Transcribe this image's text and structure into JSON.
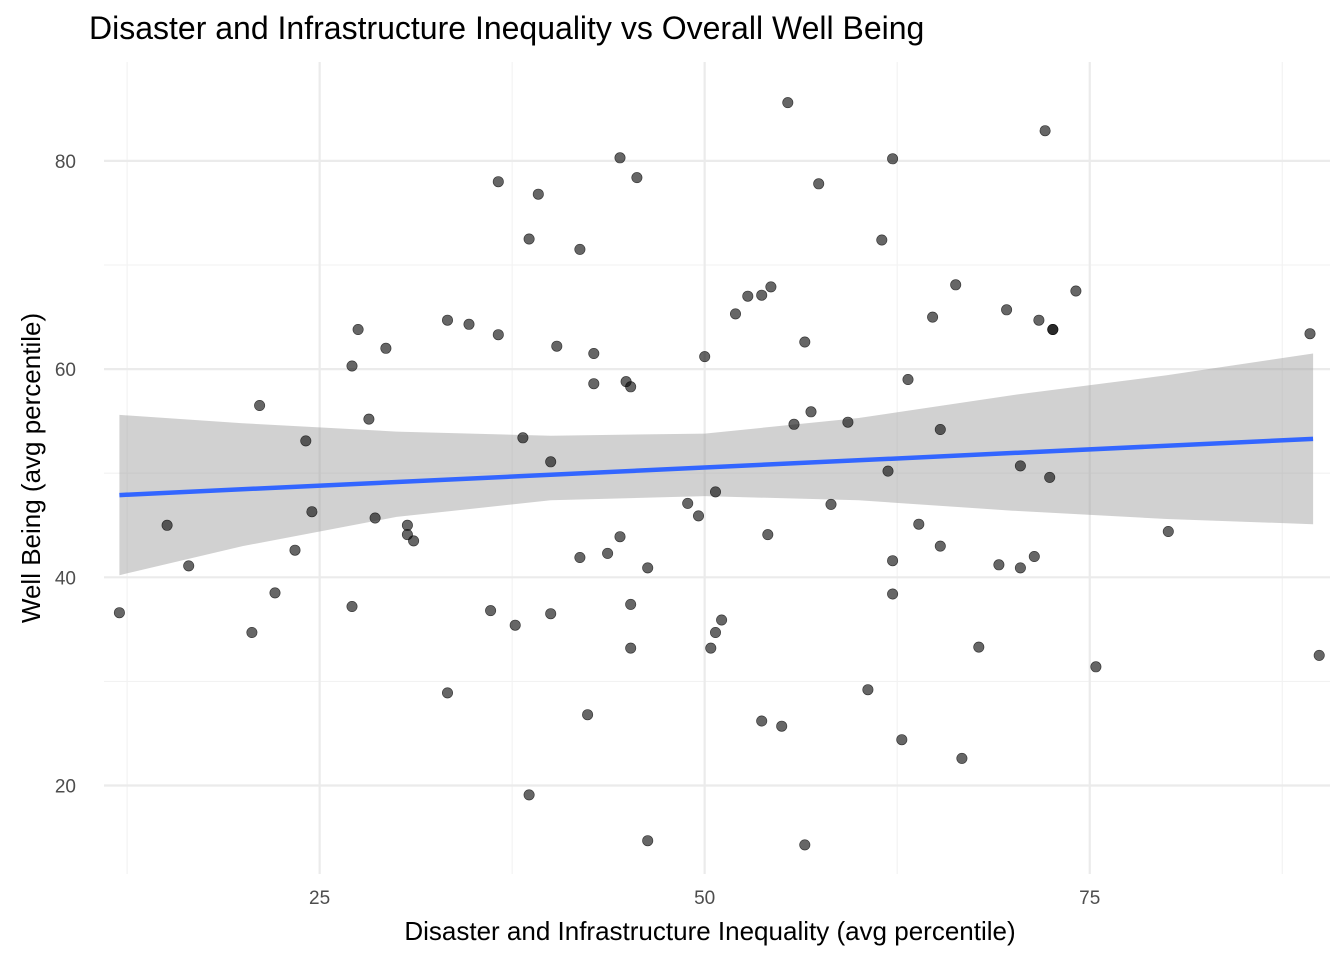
{
  "chart_data": {
    "type": "scatter",
    "title": "Disaster and Infrastructure Inequality vs Overall Well Being",
    "xlabel": "Disaster and Infrastructure Inequality (avg percentile)",
    "ylabel": "Well Being (avg percentile)",
    "xlim": [
      11,
      90.6
    ],
    "ylim": [
      11.5,
      89.5
    ],
    "x_ticks": [
      25,
      50,
      75
    ],
    "y_ticks": [
      20,
      40,
      60,
      80
    ],
    "x_tick_labels": [
      "25",
      "50",
      "75"
    ],
    "y_tick_labels": [
      "20",
      "40",
      "60",
      "80"
    ],
    "grid": true,
    "point_color": "#000000",
    "trend": {
      "method": "linear",
      "color": "#3366ff",
      "ci_color": "#999999",
      "line": [
        [
          12.0,
          47.9
        ],
        [
          89.5,
          53.3
        ]
      ],
      "ci_band": [
        [
          12.0,
          40.2,
          55.6
        ],
        [
          20.0,
          43.0,
          54.8
        ],
        [
          30.0,
          45.8,
          54.0
        ],
        [
          40.0,
          47.4,
          53.6
        ],
        [
          50.0,
          47.8,
          53.8
        ],
        [
          60.0,
          47.4,
          55.3
        ],
        [
          70.0,
          46.4,
          57.5
        ],
        [
          80.0,
          45.6,
          59.4
        ],
        [
          89.5,
          45.1,
          61.5
        ]
      ]
    },
    "points": [
      [
        12.0,
        36.6
      ],
      [
        15.1,
        45.0
      ],
      [
        16.5,
        41.1
      ],
      [
        20.6,
        34.7
      ],
      [
        21.1,
        56.5
      ],
      [
        22.1,
        38.5
      ],
      [
        23.4,
        42.6
      ],
      [
        24.1,
        53.1
      ],
      [
        24.5,
        46.3
      ],
      [
        27.1,
        60.3
      ],
      [
        27.1,
        37.2
      ],
      [
        27.5,
        63.8
      ],
      [
        28.2,
        55.2
      ],
      [
        28.6,
        45.7
      ],
      [
        29.3,
        62.0
      ],
      [
        30.7,
        45.0
      ],
      [
        30.7,
        44.1
      ],
      [
        31.1,
        43.5
      ],
      [
        33.3,
        28.9
      ],
      [
        33.3,
        64.7
      ],
      [
        34.7,
        64.3
      ],
      [
        36.1,
        36.8
      ],
      [
        36.6,
        63.3
      ],
      [
        36.6,
        78.0
      ],
      [
        37.7,
        35.4
      ],
      [
        38.2,
        53.4
      ],
      [
        38.6,
        72.5
      ],
      [
        38.6,
        19.1
      ],
      [
        39.2,
        76.8
      ],
      [
        40.0,
        51.1
      ],
      [
        40.0,
        36.5
      ],
      [
        40.4,
        62.2
      ],
      [
        41.9,
        71.5
      ],
      [
        41.9,
        41.9
      ],
      [
        42.4,
        26.8
      ],
      [
        42.8,
        58.6
      ],
      [
        42.8,
        61.5
      ],
      [
        43.7,
        42.3
      ],
      [
        44.5,
        43.9
      ],
      [
        44.5,
        80.3
      ],
      [
        44.9,
        58.8
      ],
      [
        45.2,
        37.4
      ],
      [
        45.2,
        58.3
      ],
      [
        45.2,
        33.2
      ],
      [
        45.6,
        78.4
      ],
      [
        46.3,
        40.9
      ],
      [
        46.3,
        14.7
      ],
      [
        48.9,
        47.1
      ],
      [
        49.6,
        45.9
      ],
      [
        50.0,
        61.2
      ],
      [
        50.4,
        33.2
      ],
      [
        50.7,
        48.2
      ],
      [
        50.7,
        34.7
      ],
      [
        51.1,
        35.9
      ],
      [
        52.0,
        65.3
      ],
      [
        52.8,
        67.0
      ],
      [
        53.7,
        67.1
      ],
      [
        53.7,
        26.2
      ],
      [
        54.1,
        44.1
      ],
      [
        54.3,
        67.9
      ],
      [
        55.0,
        25.7
      ],
      [
        55.4,
        85.6
      ],
      [
        55.8,
        54.7
      ],
      [
        56.5,
        62.6
      ],
      [
        56.5,
        14.3
      ],
      [
        56.9,
        55.9
      ],
      [
        57.4,
        77.8
      ],
      [
        58.2,
        47.0
      ],
      [
        59.3,
        54.9
      ],
      [
        60.6,
        29.2
      ],
      [
        61.5,
        72.4
      ],
      [
        61.9,
        50.2
      ],
      [
        62.2,
        80.2
      ],
      [
        62.2,
        41.6
      ],
      [
        62.2,
        38.4
      ],
      [
        62.8,
        24.4
      ],
      [
        63.2,
        59.0
      ],
      [
        63.9,
        45.1
      ],
      [
        64.8,
        65.0
      ],
      [
        65.3,
        54.2
      ],
      [
        65.3,
        43.0
      ],
      [
        66.3,
        68.1
      ],
      [
        66.7,
        22.6
      ],
      [
        67.8,
        33.3
      ],
      [
        69.1,
        41.2
      ],
      [
        69.6,
        65.7
      ],
      [
        70.5,
        50.7
      ],
      [
        70.5,
        40.9
      ],
      [
        71.4,
        42.0
      ],
      [
        71.7,
        64.7
      ],
      [
        72.1,
        82.9
      ],
      [
        72.4,
        49.6
      ],
      [
        72.6,
        63.8
      ],
      [
        72.6,
        63.8
      ],
      [
        74.1,
        67.5
      ],
      [
        75.4,
        31.4
      ],
      [
        80.1,
        44.4
      ],
      [
        89.3,
        63.4
      ],
      [
        89.9,
        32.5
      ]
    ]
  }
}
